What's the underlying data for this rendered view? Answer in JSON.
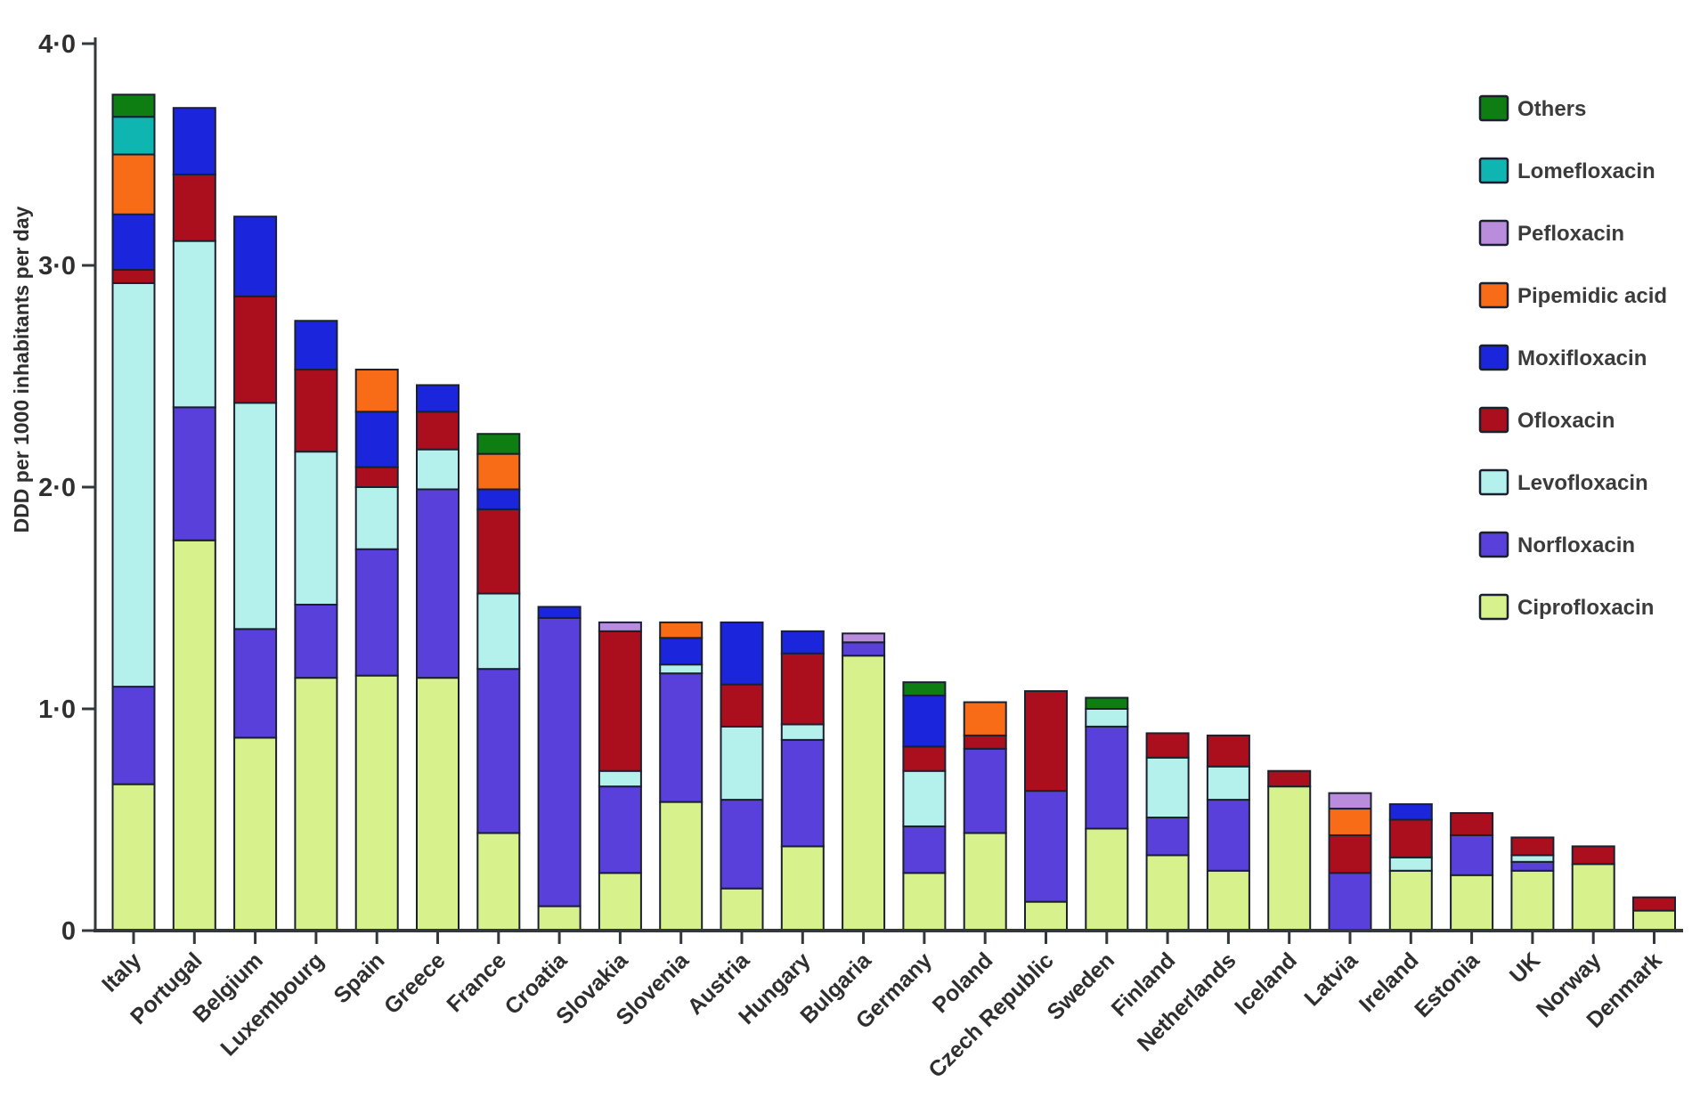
{
  "figure": {
    "y_axis_title": "DDD per 1000 inhabitants per day",
    "text_color": "#2f2f2f",
    "axis_color": "#33383d",
    "segment_outline_color": "#1b2030"
  },
  "chart_data": {
    "type": "bar",
    "stacked": true,
    "title": "",
    "xlabel": "",
    "ylabel": "DDD per 1000 inhabitants per day",
    "ylim": [
      0,
      4.0
    ],
    "grid": false,
    "legend_position": "upper-right",
    "y_ticks": [
      {
        "label": "0",
        "value": 0
      },
      {
        "label": "1·0",
        "value": 1.0
      },
      {
        "label": "2·0",
        "value": 2.0
      },
      {
        "label": "3·0",
        "value": 3.0
      },
      {
        "label": "4·0",
        "value": 4.0
      }
    ],
    "legend_order_top_to_bottom": [
      "Others",
      "Lomefloxacin",
      "Pefloxacin",
      "Pipemidic acid",
      "Moxifloxacin",
      "Ofloxacin",
      "Levofloxacin",
      "Norfloxacin",
      "Ciprofloxacin"
    ],
    "categories": [
      "Italy",
      "Portugal",
      "Belgium",
      "Luxembourg",
      "Spain",
      "Greece",
      "France",
      "Croatia",
      "Slovakia",
      "Slovenia",
      "Austria",
      "Hungary",
      "Bulgaria",
      "Germany",
      "Poland",
      "Czech Republic",
      "Sweden",
      "Finland",
      "Netherlands",
      "Iceland",
      "Latvia",
      "Ireland",
      "Estonia",
      "UK",
      "Norway",
      "Denmark"
    ],
    "series": [
      {
        "name": "Ciprofloxacin",
        "color": "#d7f18c",
        "values": [
          0.66,
          1.76,
          0.87,
          1.14,
          1.15,
          1.14,
          0.44,
          0.11,
          0.26,
          0.58,
          0.19,
          0.38,
          1.24,
          0.26,
          0.44,
          0.13,
          0.46,
          0.34,
          0.27,
          0.65,
          0.0,
          0.27,
          0.25,
          0.27,
          0.3,
          0.09
        ]
      },
      {
        "name": "Norfloxacin",
        "color": "#5a40da",
        "values": [
          0.44,
          0.6,
          0.49,
          0.33,
          0.57,
          0.85,
          0.74,
          1.3,
          0.39,
          0.58,
          0.4,
          0.48,
          0.06,
          0.21,
          0.38,
          0.5,
          0.46,
          0.17,
          0.32,
          0.0,
          0.26,
          0.0,
          0.18,
          0.04,
          0.0,
          0.0
        ]
      },
      {
        "name": "Levofloxacin",
        "color": "#b5f1ec",
        "values": [
          1.82,
          0.75,
          1.02,
          0.69,
          0.28,
          0.18,
          0.34,
          0.0,
          0.07,
          0.04,
          0.33,
          0.07,
          0.0,
          0.25,
          0.0,
          0.0,
          0.08,
          0.27,
          0.15,
          0.0,
          0.0,
          0.06,
          0.0,
          0.03,
          0.0,
          0.0
        ]
      },
      {
        "name": "Ofloxacin",
        "color": "#ab0f1e",
        "values": [
          0.06,
          0.3,
          0.48,
          0.37,
          0.09,
          0.17,
          0.38,
          0.0,
          0.63,
          0.0,
          0.19,
          0.32,
          0.0,
          0.11,
          0.06,
          0.45,
          0.0,
          0.11,
          0.14,
          0.07,
          0.17,
          0.17,
          0.1,
          0.08,
          0.08,
          0.06
        ]
      },
      {
        "name": "Moxifloxacin",
        "color": "#1b25dc",
        "values": [
          0.25,
          0.3,
          0.36,
          0.22,
          0.25,
          0.12,
          0.09,
          0.05,
          0.0,
          0.12,
          0.28,
          0.1,
          0.0,
          0.23,
          0.0,
          0.0,
          0.0,
          0.0,
          0.0,
          0.0,
          0.0,
          0.07,
          0.0,
          0.0,
          0.0,
          0.0
        ]
      },
      {
        "name": "Pipemidic acid",
        "color": "#f96c17",
        "values": [
          0.27,
          0,
          0,
          0,
          0.19,
          0,
          0.16,
          0,
          0,
          0.07,
          0,
          0,
          0,
          0,
          0.15,
          0,
          0,
          0,
          0,
          0,
          0.12,
          0,
          0,
          0,
          0,
          0
        ]
      },
      {
        "name": "Pefloxacin",
        "color": "#b98ddc",
        "values": [
          0,
          0,
          0,
          0,
          0,
          0,
          0,
          0,
          0.04,
          0,
          0,
          0,
          0.04,
          0,
          0,
          0,
          0,
          0,
          0,
          0,
          0.07,
          0,
          0,
          0,
          0,
          0
        ]
      },
      {
        "name": "Lomefloxacin",
        "color": "#0fb5b0",
        "values": [
          0.17,
          0,
          0,
          0,
          0,
          0,
          0,
          0,
          0,
          0,
          0,
          0,
          0,
          0,
          0,
          0,
          0,
          0,
          0,
          0,
          0,
          0,
          0,
          0,
          0,
          0
        ]
      },
      {
        "name": "Others",
        "color": "#0e7d12",
        "values": [
          0.1,
          0,
          0,
          0,
          0,
          0,
          0.09,
          0,
          0,
          0,
          0,
          0,
          0,
          0.06,
          0,
          0,
          0.05,
          0,
          0,
          0,
          0,
          0,
          0,
          0,
          0,
          0
        ]
      }
    ]
  }
}
